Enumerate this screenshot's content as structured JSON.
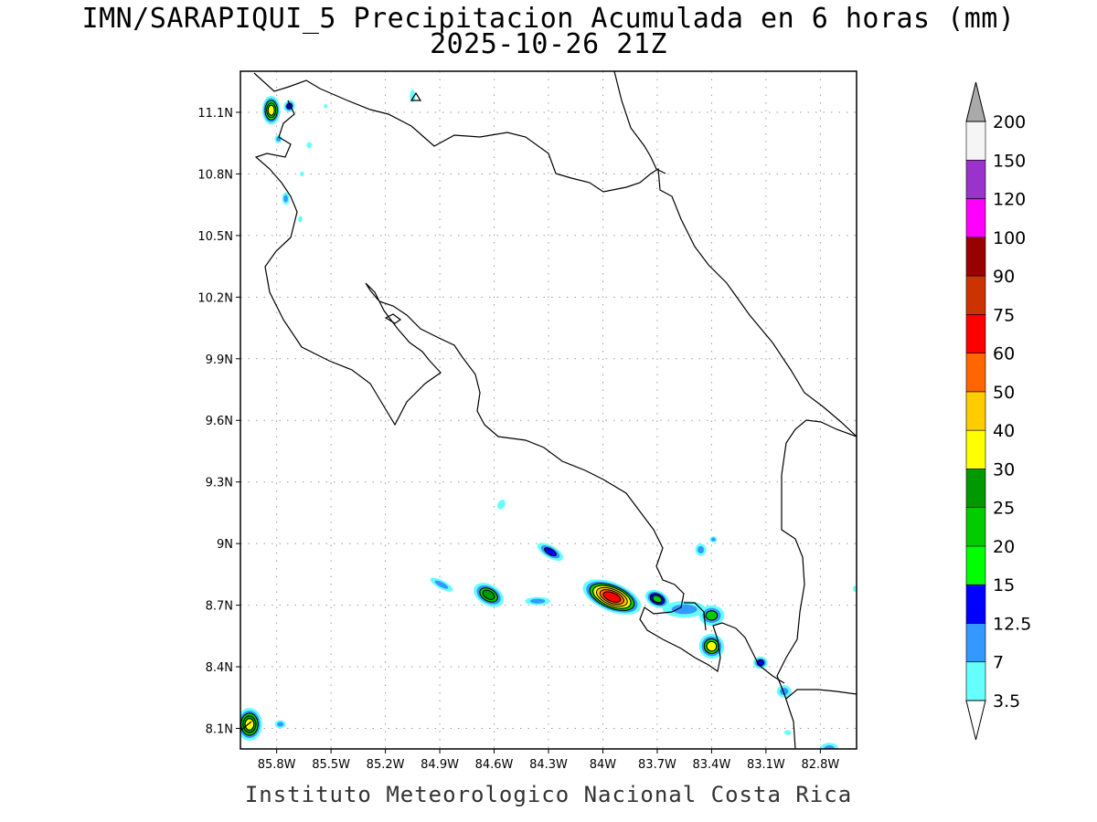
{
  "title": {
    "line1": "IMN/SARAPIQUI_5 Precipitacion Acumulada en 6 horas (mm)",
    "line2": "2025-10-26 21Z"
  },
  "footer": "Instituto Meteorologico Nacional Costa Rica",
  "map": {
    "lon_range": [
      -86.0,
      -82.6
    ],
    "lat_range": [
      8.0,
      11.3
    ],
    "lon_ticks": [
      {
        "v": -85.8,
        "label": "85.8W"
      },
      {
        "v": -85.5,
        "label": "85.5W"
      },
      {
        "v": -85.2,
        "label": "85.2W"
      },
      {
        "v": -84.9,
        "label": "84.9W"
      },
      {
        "v": -84.6,
        "label": "84.6W"
      },
      {
        "v": -84.3,
        "label": "84.3W"
      },
      {
        "v": -84.0,
        "label": "84W"
      },
      {
        "v": -83.7,
        "label": "83.7W"
      },
      {
        "v": -83.4,
        "label": "83.4W"
      },
      {
        "v": -83.1,
        "label": "83.1W"
      },
      {
        "v": -82.8,
        "label": "82.8W"
      }
    ],
    "lat_ticks": [
      {
        "v": 8.1,
        "label": "8.1N"
      },
      {
        "v": 8.4,
        "label": "8.4N"
      },
      {
        "v": 8.7,
        "label": "8.7N"
      },
      {
        "v": 9.0,
        "label": "9N"
      },
      {
        "v": 9.3,
        "label": "9.3N"
      },
      {
        "v": 9.6,
        "label": "9.6N"
      },
      {
        "v": 9.9,
        "label": "9.9N"
      },
      {
        "v": 10.2,
        "label": "10.2N"
      },
      {
        "v": 10.5,
        "label": "10.5N"
      },
      {
        "v": 10.8,
        "label": "10.8N"
      },
      {
        "v": 11.1,
        "label": "11.1N"
      }
    ],
    "grid": true,
    "coast_color": "#000000",
    "precip_cells": [
      {
        "lon": -85.83,
        "lat": 11.11,
        "rx": 0.05,
        "ry": 0.07,
        "angle": 0,
        "levels": [
          3.5,
          7,
          15,
          20,
          30
        ]
      },
      {
        "lon": -85.73,
        "lat": 11.13,
        "rx": 0.03,
        "ry": 0.03,
        "angle": 30,
        "levels": [
          3.5,
          7,
          12.5
        ]
      },
      {
        "lon": -85.79,
        "lat": 10.97,
        "rx": 0.02,
        "ry": 0.02,
        "angle": 0,
        "levels": [
          3.5,
          7
        ]
      },
      {
        "lon": -85.62,
        "lat": 10.94,
        "rx": 0.015,
        "ry": 0.015,
        "angle": 0,
        "levels": [
          3.5
        ]
      },
      {
        "lon": -85.66,
        "lat": 10.8,
        "rx": 0.012,
        "ry": 0.012,
        "angle": 0,
        "levels": [
          3.5
        ]
      },
      {
        "lon": -85.75,
        "lat": 10.68,
        "rx": 0.02,
        "ry": 0.03,
        "angle": 0,
        "levels": [
          3.5,
          7
        ]
      },
      {
        "lon": -85.67,
        "lat": 10.58,
        "rx": 0.012,
        "ry": 0.015,
        "angle": 0,
        "levels": [
          3.5
        ]
      },
      {
        "lon": -85.05,
        "lat": 11.18,
        "rx": 0.015,
        "ry": 0.03,
        "angle": 0,
        "levels": [
          3.5
        ]
      },
      {
        "lon": -85.53,
        "lat": 11.13,
        "rx": 0.008,
        "ry": 0.01,
        "angle": 0,
        "levels": [
          3.5
        ]
      },
      {
        "lon": -84.89,
        "lat": 8.8,
        "rx": 0.07,
        "ry": 0.02,
        "angle": 28,
        "levels": [
          3.5,
          7
        ]
      },
      {
        "lon": -84.63,
        "lat": 8.75,
        "rx": 0.09,
        "ry": 0.05,
        "angle": 30,
        "levels": [
          3.5,
          7,
          20,
          25
        ]
      },
      {
        "lon": -84.36,
        "lat": 8.72,
        "rx": 0.07,
        "ry": 0.02,
        "angle": 0,
        "levels": [
          3.5,
          7
        ]
      },
      {
        "lon": -84.56,
        "lat": 9.19,
        "rx": 0.02,
        "ry": 0.025,
        "angle": 30,
        "levels": [
          3.5
        ]
      },
      {
        "lon": -84.29,
        "lat": 8.96,
        "rx": 0.08,
        "ry": 0.03,
        "angle": 30,
        "levels": [
          3.5,
          7,
          12.5
        ]
      },
      {
        "lon": -83.95,
        "lat": 8.74,
        "rx": 0.17,
        "ry": 0.07,
        "angle": 22,
        "levels": [
          3.5,
          7,
          20,
          30,
          40,
          50,
          60
        ]
      },
      {
        "lon": -83.7,
        "lat": 8.73,
        "rx": 0.07,
        "ry": 0.04,
        "angle": 25,
        "levels": [
          3.5,
          7,
          12.5,
          20
        ]
      },
      {
        "lon": -83.55,
        "lat": 8.68,
        "rx": 0.12,
        "ry": 0.04,
        "angle": 0,
        "levels": [
          3.5,
          7
        ]
      },
      {
        "lon": -83.4,
        "lat": 8.65,
        "rx": 0.07,
        "ry": 0.05,
        "angle": 0,
        "levels": [
          3.5,
          7,
          20
        ]
      },
      {
        "lon": -83.4,
        "lat": 8.5,
        "rx": 0.07,
        "ry": 0.06,
        "angle": 40,
        "levels": [
          3.5,
          7,
          20,
          30
        ]
      },
      {
        "lon": -83.46,
        "lat": 8.97,
        "rx": 0.03,
        "ry": 0.03,
        "angle": 0,
        "levels": [
          3.5,
          7
        ]
      },
      {
        "lon": -83.39,
        "lat": 9.02,
        "rx": 0.02,
        "ry": 0.015,
        "angle": 0,
        "levels": [
          3.5,
          7
        ]
      },
      {
        "lon": -83.13,
        "lat": 8.42,
        "rx": 0.04,
        "ry": 0.03,
        "angle": 0,
        "levels": [
          3.5,
          7,
          12.5
        ]
      },
      {
        "lon": -83.0,
        "lat": 8.28,
        "rx": 0.04,
        "ry": 0.03,
        "angle": 0,
        "levels": [
          3.5,
          7
        ]
      },
      {
        "lon": -82.98,
        "lat": 8.08,
        "rx": 0.02,
        "ry": 0.012,
        "angle": 0,
        "levels": [
          3.5
        ]
      },
      {
        "lon": -82.75,
        "lat": 8.0,
        "rx": 0.05,
        "ry": 0.03,
        "angle": 0,
        "levels": [
          3.5,
          7
        ]
      },
      {
        "lon": -82.61,
        "lat": 8.78,
        "rx": 0.01,
        "ry": 0.015,
        "angle": 0,
        "levels": [
          3.5
        ]
      },
      {
        "lon": -85.95,
        "lat": 8.12,
        "rx": 0.07,
        "ry": 0.08,
        "angle": 0,
        "levels": [
          3.5,
          7,
          20,
          25,
          30
        ]
      },
      {
        "lon": -85.78,
        "lat": 8.12,
        "rx": 0.03,
        "ry": 0.02,
        "angle": 0,
        "levels": [
          3.5,
          7
        ]
      }
    ]
  },
  "colorbar": {
    "levels": [
      {
        "label": "3.5",
        "color": "#66ffff"
      },
      {
        "label": "7",
        "color": "#3399ff"
      },
      {
        "label": "12.5",
        "color": "#0000ff"
      },
      {
        "label": "15",
        "color": "#00ff00"
      },
      {
        "label": "20",
        "color": "#00cc00"
      },
      {
        "label": "25",
        "color": "#009900"
      },
      {
        "label": "30",
        "color": "#ffff00"
      },
      {
        "label": "40",
        "color": "#ffcc00"
      },
      {
        "label": "50",
        "color": "#ff6600"
      },
      {
        "label": "60",
        "color": "#ff0000"
      },
      {
        "label": "75",
        "color": "#cc3300"
      },
      {
        "label": "90",
        "color": "#990000"
      },
      {
        "label": "100",
        "color": "#ff00ff"
      },
      {
        "label": "120",
        "color": "#9933cc"
      },
      {
        "label": "150",
        "color": "#f5f5f5"
      },
      {
        "label": "200",
        "color": ""
      }
    ],
    "below_color": "#ffffff",
    "above_color": "#aaaaaa"
  }
}
